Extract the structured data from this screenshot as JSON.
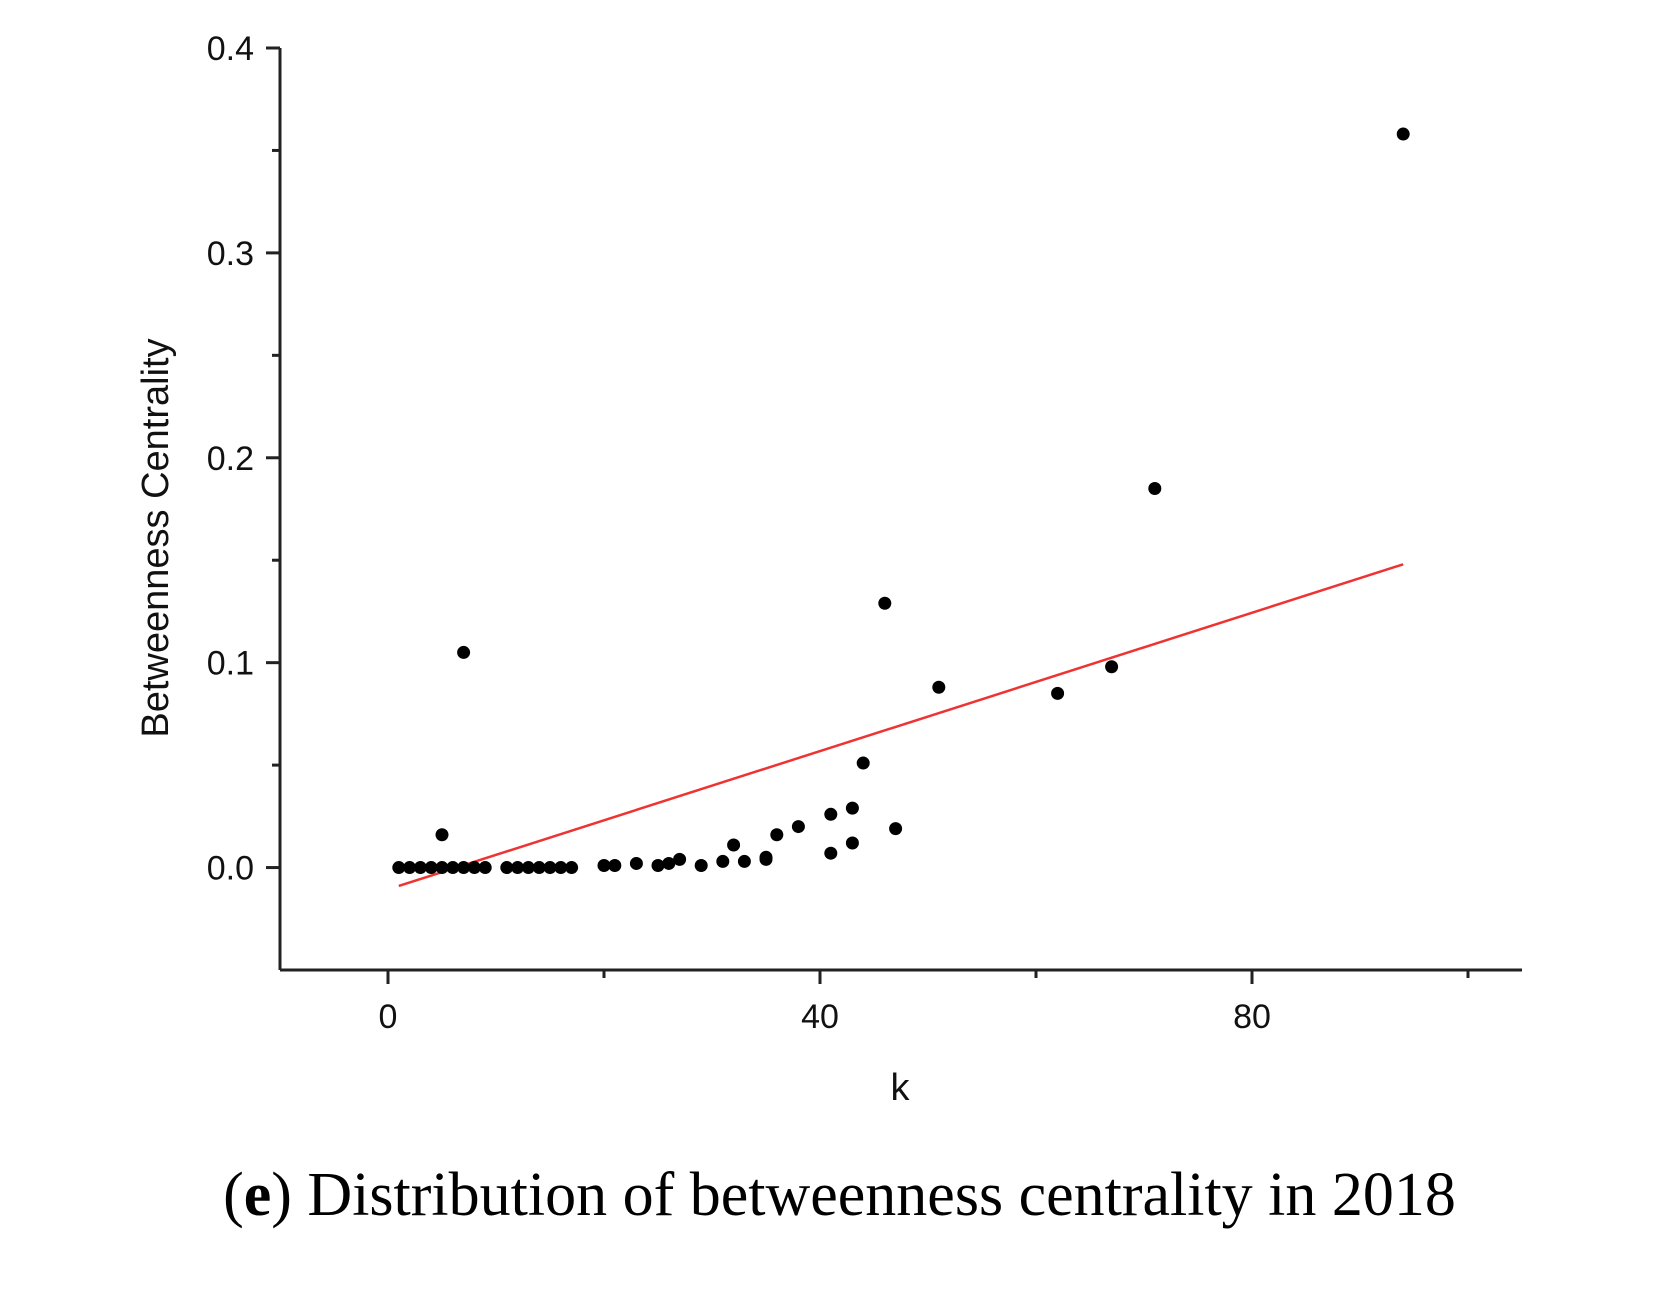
{
  "chart_data": {
    "type": "scatter",
    "title": "",
    "xlabel": "k",
    "ylabel": "Betweenness Centrality",
    "xlim": [
      -10,
      105
    ],
    "ylim": [
      -0.05,
      0.4
    ],
    "x_ticks": [
      0,
      40,
      80
    ],
    "x_tick_labels": [
      "0",
      "40",
      "80"
    ],
    "y_ticks": [
      0.0,
      0.1,
      0.2,
      0.3,
      0.4
    ],
    "y_tick_labels": [
      "0.0",
      "0.1",
      "0.2",
      "0.3",
      "0.4"
    ],
    "grid": false,
    "colors": {
      "points": "#000000",
      "fit_line": "#ee3333",
      "axes": "#222222"
    },
    "series": [
      {
        "name": "nodes",
        "type": "scatter",
        "points": [
          [
            1,
            0.0
          ],
          [
            2,
            0.0
          ],
          [
            3,
            0.0
          ],
          [
            4,
            0.0
          ],
          [
            5,
            0.0
          ],
          [
            6,
            0.0
          ],
          [
            7,
            0.0
          ],
          [
            8,
            0.0
          ],
          [
            9,
            0.0
          ],
          [
            5,
            0.016
          ],
          [
            7,
            0.105
          ],
          [
            11,
            0.0
          ],
          [
            12,
            0.0
          ],
          [
            13,
            0.0
          ],
          [
            14,
            0.0
          ],
          [
            15,
            0.0
          ],
          [
            16,
            0.0
          ],
          [
            17,
            0.0
          ],
          [
            20,
            0.001
          ],
          [
            21,
            0.001
          ],
          [
            23,
            0.002
          ],
          [
            25,
            0.001
          ],
          [
            26,
            0.002
          ],
          [
            27,
            0.004
          ],
          [
            29,
            0.001
          ],
          [
            31,
            0.003
          ],
          [
            32,
            0.011
          ],
          [
            33,
            0.003
          ],
          [
            35,
            0.004
          ],
          [
            35,
            0.005
          ],
          [
            36,
            0.016
          ],
          [
            38,
            0.02
          ],
          [
            41,
            0.026
          ],
          [
            41,
            0.007
          ],
          [
            43,
            0.029
          ],
          [
            43,
            0.012
          ],
          [
            44,
            0.051
          ],
          [
            46,
            0.129
          ],
          [
            47,
            0.019
          ],
          [
            51,
            0.088
          ],
          [
            62,
            0.085
          ],
          [
            67,
            0.098
          ],
          [
            71,
            0.185
          ],
          [
            94,
            0.358
          ]
        ]
      },
      {
        "name": "linear fit",
        "type": "line",
        "points": [
          [
            1,
            -0.009
          ],
          [
            94,
            0.148
          ]
        ]
      }
    ]
  },
  "caption": {
    "label": "e",
    "text": "Distribution of betweenness centrality in 2018"
  }
}
